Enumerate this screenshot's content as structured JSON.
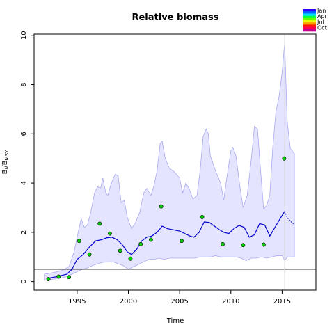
{
  "chart_data": {
    "type": "line",
    "title": "Relative biomass",
    "xlabel": "Time",
    "ylabel": {
      "main": "B",
      "sub1": "t",
      "sep": "/B",
      "sub2": "MSY"
    },
    "xlim": [
      1990.8,
      2018.3
    ],
    "ylim": [
      -0.35,
      10.05
    ],
    "x_ticks": [
      1995,
      2000,
      2005,
      2010,
      2015
    ],
    "y_ticks": [
      0,
      2,
      4,
      6,
      8,
      10
    ],
    "reference_line_y": 0.5,
    "vertical_marker_x": 2015.25,
    "colors": {
      "band_fill": "#e4e4ff",
      "band_edge": "#a8a8f0",
      "median_line": "#0000cc",
      "observations": "#00cc00",
      "reference": "#000000",
      "marker": "#d8d8d8"
    },
    "legend": {
      "labels": [
        "Jan",
        "Apr",
        "Jul",
        "Oct"
      ],
      "colors": [
        "#2e00ff",
        "#0069ff",
        "#00d8ff",
        "#00ff4a",
        "#5eff00",
        "#e1ff00",
        "#ff9a00",
        "#ff1800",
        "#ff0056",
        "#c40090"
      ]
    },
    "series": [
      {
        "role": "median",
        "x": [
          1992.0,
          1993.0,
          1994.0,
          1994.5,
          1995.0,
          1995.6,
          1996.2,
          1996.8,
          1997.4,
          1997.9,
          1998.4,
          1998.9,
          1999.4,
          1999.9,
          2000.3,
          2000.8,
          2001.3,
          2001.8,
          2002.3,
          2002.8,
          2003.3,
          2003.8,
          2004.4,
          2005.0,
          2005.5,
          2006.0,
          2006.4,
          2006.9,
          2007.4,
          2007.9,
          2008.4,
          2008.9,
          2009.3,
          2009.8,
          2010.3,
          2010.8,
          2011.3,
          2011.8,
          2012.3,
          2012.8,
          2013.3,
          2013.8,
          2014.3,
          2014.8,
          2015.25
        ],
        "y": [
          0.12,
          0.2,
          0.3,
          0.5,
          0.9,
          1.1,
          1.4,
          1.65,
          1.7,
          1.78,
          1.8,
          1.7,
          1.5,
          1.2,
          1.1,
          1.3,
          1.65,
          1.8,
          1.85,
          2.0,
          2.25,
          2.15,
          2.1,
          2.05,
          1.95,
          1.85,
          1.8,
          2.0,
          2.42,
          2.4,
          2.25,
          2.1,
          2.0,
          1.95,
          2.15,
          2.28,
          2.2,
          1.8,
          1.9,
          2.35,
          2.3,
          1.85,
          2.2,
          2.55,
          2.85
        ]
      },
      {
        "role": "median-prediction",
        "x": [
          2015.25,
          2015.5,
          2015.8,
          2016.2
        ],
        "y": [
          2.85,
          2.6,
          2.45,
          2.32
        ]
      },
      {
        "role": "upper-bound",
        "x": [
          1991.8,
          1992.5,
          1993.5,
          1994.2,
          1994.7,
          1995.1,
          1995.4,
          1995.7,
          1996.0,
          1996.3,
          1996.7,
          1997.0,
          1997.3,
          1997.5,
          1997.8,
          1998.0,
          1998.3,
          1998.7,
          1999.0,
          1999.3,
          1999.6,
          1999.9,
          2000.3,
          2000.7,
          2001.1,
          2001.5,
          2001.8,
          2002.2,
          2002.5,
          2002.8,
          2003.1,
          2003.3,
          2003.6,
          2004.0,
          2004.5,
          2005.0,
          2005.3,
          2005.6,
          2005.9,
          2006.3,
          2006.7,
          2007.0,
          2007.3,
          2007.6,
          2007.8,
          2008.0,
          2008.5,
          2009.0,
          2009.3,
          2009.6,
          2010.0,
          2010.2,
          2010.5,
          2010.9,
          2011.2,
          2011.6,
          2012.0,
          2012.3,
          2012.6,
          2012.9,
          2013.2,
          2013.5,
          2013.8,
          2014.1,
          2014.4,
          2014.7,
          2015.0,
          2015.25,
          2015.5,
          2015.8,
          2016.2
        ],
        "y": [
          0.3,
          0.35,
          0.45,
          0.6,
          1.2,
          2.0,
          2.55,
          2.2,
          2.3,
          2.75,
          3.6,
          3.85,
          3.8,
          4.2,
          3.6,
          3.5,
          3.95,
          4.35,
          4.3,
          3.2,
          3.3,
          2.6,
          2.15,
          2.4,
          2.8,
          3.6,
          3.78,
          3.5,
          3.9,
          4.5,
          5.6,
          5.7,
          5.0,
          4.6,
          4.45,
          4.2,
          3.6,
          4.0,
          3.8,
          3.35,
          3.5,
          4.5,
          5.9,
          6.2,
          6.0,
          5.1,
          4.5,
          4.0,
          3.3,
          4.2,
          5.3,
          5.45,
          5.1,
          3.8,
          3.0,
          3.5,
          5.0,
          6.3,
          6.2,
          4.5,
          2.95,
          3.1,
          3.5,
          5.5,
          6.9,
          7.5,
          8.5,
          9.7,
          6.5,
          5.4,
          5.2
        ]
      },
      {
        "role": "lower-bound",
        "x": [
          2016.2,
          2015.8,
          2015.5,
          2015.25,
          2015.0,
          2014.5,
          2014.0,
          2013.5,
          2013.0,
          2012.5,
          2012.0,
          2011.5,
          2011.0,
          2010.5,
          2010.0,
          2009.5,
          2009.0,
          2008.5,
          2008.0,
          2007.5,
          2007.0,
          2006.5,
          2006.0,
          2005.5,
          2005.0,
          2004.5,
          2004.0,
          2003.5,
          2003.0,
          2002.5,
          2002.0,
          2001.5,
          2001.0,
          2000.5,
          2000.0,
          1999.5,
          1999.0,
          1998.5,
          1998.0,
          1997.5,
          1997.0,
          1996.5,
          1996.0,
          1995.5,
          1995.0,
          1994.5,
          1994.0,
          1993.5,
          1993.0,
          1992.5,
          1991.8
        ],
        "y": [
          1.0,
          1.0,
          1.0,
          0.85,
          1.05,
          1.05,
          1.0,
          0.95,
          1.0,
          0.95,
          0.95,
          0.85,
          0.95,
          1.0,
          1.0,
          1.0,
          1.0,
          1.05,
          1.0,
          1.0,
          1.0,
          0.95,
          0.95,
          0.95,
          0.95,
          0.95,
          0.95,
          0.9,
          0.95,
          0.9,
          0.9,
          0.8,
          0.7,
          0.6,
          0.5,
          0.65,
          0.72,
          0.8,
          0.8,
          0.78,
          0.72,
          0.65,
          0.55,
          0.5,
          0.4,
          0.3,
          0.2,
          0.15,
          0.12,
          0.08,
          0.05
        ]
      },
      {
        "role": "observations",
        "x": [
          1992.2,
          1993.2,
          1994.2,
          1995.2,
          1996.2,
          1997.2,
          1998.2,
          1999.2,
          2000.2,
          2001.2,
          2002.2,
          2003.2,
          2005.2,
          2007.2,
          2009.2,
          2011.2,
          2013.2,
          2015.2
        ],
        "y": [
          0.1,
          0.2,
          0.18,
          1.65,
          1.1,
          2.35,
          1.95,
          1.25,
          0.93,
          1.52,
          1.7,
          3.05,
          1.65,
          2.62,
          1.52,
          1.48,
          1.5,
          5.0
        ]
      }
    ]
  }
}
